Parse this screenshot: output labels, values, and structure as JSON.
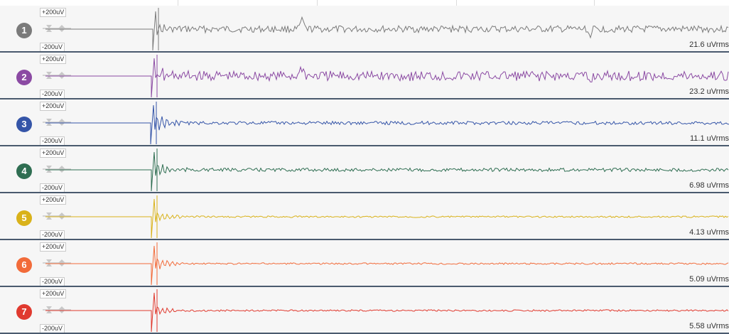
{
  "scale": {
    "top_label": "+200uV",
    "bottom_label": "-200uV"
  },
  "channels": [
    {
      "number": "1",
      "color": "#7b7b7b",
      "rms": "21.6 uVrms"
    },
    {
      "number": "2",
      "color": "#8b4aa3",
      "rms": "23.2 uVrms"
    },
    {
      "number": "3",
      "color": "#3555a8",
      "rms": "11.1 uVrms"
    },
    {
      "number": "4",
      "color": "#2f6e52",
      "rms": "6.98 uVrms"
    },
    {
      "number": "5",
      "color": "#d9b21a",
      "rms": "4.13 uVrms"
    },
    {
      "number": "6",
      "color": "#f26b3a",
      "rms": "5.09 uVrms"
    },
    {
      "number": "7",
      "color": "#e03a2f",
      "rms": "5.58 uVrms"
    }
  ]
}
